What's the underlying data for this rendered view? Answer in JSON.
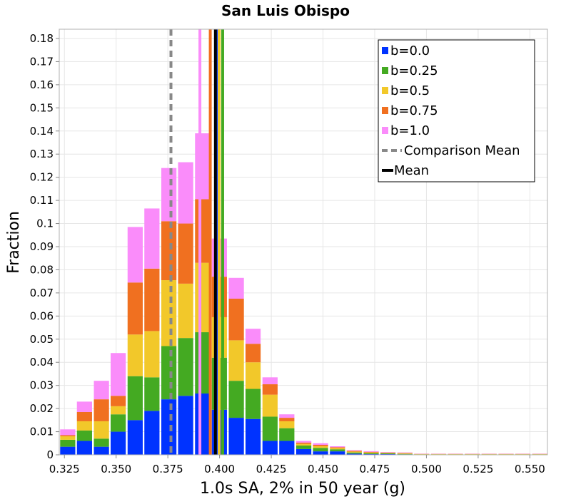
{
  "chart_data": {
    "type": "bar",
    "stacked": true,
    "title": "San Luis Obispo",
    "xlabel": "1.0s SA, 2% in 50 year (g)",
    "ylabel": "Fraction",
    "xlim": [
      0.3225,
      0.5585
    ],
    "ylim": [
      0,
      0.184
    ],
    "grid": true,
    "legend_position": "top-right",
    "bin_width": 0.00815,
    "x": [
      0.3266,
      0.3347,
      0.3429,
      0.351,
      0.3592,
      0.3673,
      0.3755,
      0.3836,
      0.3918,
      0.3999,
      0.4081,
      0.4162,
      0.4244,
      0.4325,
      0.4407,
      0.4488,
      0.457,
      0.4651,
      0.4733,
      0.4814,
      0.4896,
      0.4977,
      0.5059,
      0.514,
      0.5222,
      0.5303,
      0.5385,
      0.5466,
      0.5548
    ],
    "series": [
      {
        "name": "b=0.0",
        "color": "#0033ff",
        "values": [
          0.0035,
          0.006,
          0.0035,
          0.01,
          0.015,
          0.019,
          0.024,
          0.0255,
          0.0265,
          0.0195,
          0.016,
          0.0155,
          0.006,
          0.006,
          0.0025,
          0.0015,
          0.0015,
          0.0005,
          0.0003,
          0.0003,
          0.0002,
          0.0001,
          0.0001,
          0.0001,
          0.0001,
          0.0001,
          0.0001,
          0.0001,
          0.0001
        ]
      },
      {
        "name": "b=0.25",
        "color": "#44aa22",
        "values": [
          0.003,
          0.0045,
          0.0035,
          0.0075,
          0.019,
          0.0145,
          0.023,
          0.025,
          0.0265,
          0.0225,
          0.016,
          0.013,
          0.0105,
          0.0055,
          0.0015,
          0.0015,
          0.0009,
          0.0005,
          0.0004,
          0.0003,
          0.0002,
          0.0001,
          0.0001,
          0.0001,
          0.0001,
          0.0001,
          0.0001,
          0.0001,
          0.0001
        ]
      },
      {
        "name": "b=0.5",
        "color": "#f2c82a",
        "values": [
          0.0015,
          0.004,
          0.0075,
          0.0035,
          0.018,
          0.02,
          0.0285,
          0.0235,
          0.03,
          0.0175,
          0.0175,
          0.0115,
          0.0095,
          0.003,
          0.0007,
          0.0007,
          0.0005,
          0.0004,
          0.0003,
          0.0002,
          0.0002,
          0.0001,
          0.0001,
          0.0001,
          0.0001,
          0.0001,
          0.0001,
          0.0001,
          0.0001
        ]
      },
      {
        "name": "b=0.75",
        "color": "#f07020",
        "values": [
          0.0005,
          0.004,
          0.0095,
          0.0045,
          0.0225,
          0.027,
          0.0255,
          0.026,
          0.0275,
          0.0175,
          0.018,
          0.008,
          0.0045,
          0.0015,
          0.0006,
          0.0006,
          0.0004,
          0.0003,
          0.0003,
          0.0002,
          0.0002,
          0.0001,
          0.0001,
          0.0001,
          0.0001,
          0.0001,
          0.0001,
          0.0001,
          0.0001
        ]
      },
      {
        "name": "b=1.0",
        "color": "#fa8cfa",
        "values": [
          0.0025,
          0.0045,
          0.008,
          0.0185,
          0.024,
          0.026,
          0.023,
          0.0265,
          0.0285,
          0.0165,
          0.009,
          0.0065,
          0.003,
          0.0015,
          0.0007,
          0.0007,
          0.0004,
          0.0003,
          0.0003,
          0.0002,
          0.0002,
          0.0001,
          0.0001,
          0.0001,
          0.0001,
          0.0001,
          0.0001,
          0.0001,
          0.0001
        ]
      }
    ],
    "mean_lines": [
      {
        "series": "b=0.0",
        "x": 0.3985,
        "color": "#0033ff"
      },
      {
        "series": "b=0.25",
        "x": 0.4015,
        "color": "#44aa22"
      },
      {
        "series": "b=0.5",
        "x": 0.3998,
        "color": "#f2c82a"
      },
      {
        "series": "b=0.75",
        "x": 0.3955,
        "color": "#f07020"
      },
      {
        "series": "b=1.0",
        "x": 0.3905,
        "color": "#fa8cfa"
      }
    ],
    "comparison_mean": {
      "name": "Comparison Mean",
      "x": 0.3765,
      "color": "#888888"
    },
    "mean": {
      "name": "Mean",
      "x": 0.398,
      "color": "#000000"
    },
    "xticks": [
      0.325,
      0.35,
      0.375,
      0.4,
      0.425,
      0.45,
      0.475,
      0.5,
      0.525,
      0.55
    ],
    "xtick_labels": [
      "0.325",
      "0.350",
      "0.375",
      "0.400",
      "0.425",
      "0.450",
      "0.475",
      "0.500",
      "0.525",
      "0.550"
    ],
    "yticks": [
      0,
      0.01,
      0.02,
      0.03,
      0.04,
      0.05,
      0.06,
      0.07,
      0.08,
      0.09,
      0.1,
      0.11,
      0.12,
      0.13,
      0.14,
      0.15,
      0.16,
      0.17,
      0.18
    ],
    "ytick_labels": [
      "0",
      "0.01",
      "0.02",
      "0.03",
      "0.04",
      "0.05",
      "0.06",
      "0.07",
      "0.08",
      "0.09",
      "0.1",
      "0.11",
      "0.12",
      "0.13",
      "0.14",
      "0.15",
      "0.16",
      "0.17",
      "0.18"
    ]
  }
}
